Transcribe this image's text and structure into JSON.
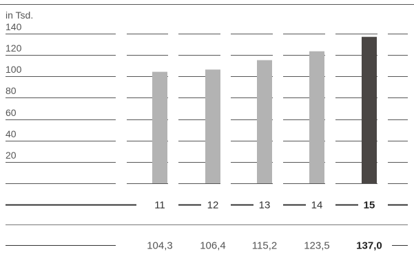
{
  "chart_data": {
    "type": "bar",
    "unit_label": "in Tsd.",
    "categories": [
      "11",
      "12",
      "13",
      "14",
      "15"
    ],
    "values": [
      104.3,
      106.4,
      115.2,
      123.5,
      137.0
    ],
    "value_labels": [
      "104,3",
      "106,4",
      "115,2",
      "123,5",
      "137,0"
    ],
    "yticks": [
      20,
      40,
      60,
      80,
      100,
      120,
      140
    ],
    "ylim": [
      0,
      140
    ],
    "grid": true,
    "highlight_index": 4,
    "colors": {
      "bar": "#b3b3b3",
      "highlight": "#4a4644",
      "grid": "#555555"
    }
  }
}
